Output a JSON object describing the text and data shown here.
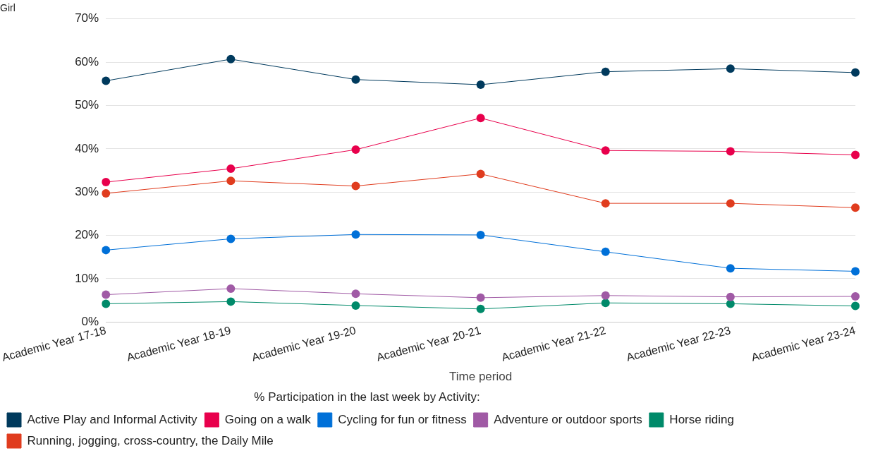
{
  "chart_data": {
    "type": "line",
    "title": "Girl",
    "xlabel": "Time period",
    "legend_title": "% Participation in the last week by Activity:",
    "categories": [
      "Academic Year 17-18",
      "Academic Year 18-19",
      "Academic Year 19-20",
      "Academic Year 20-21",
      "Academic Year 21-22",
      "Academic Year 22-23",
      "Academic Year 23-24"
    ],
    "series": [
      {
        "name": "Active Play and Informal Activity",
        "color": "#003a5d",
        "values": [
          55.7,
          60.7,
          56.0,
          54.8,
          57.8,
          58.5,
          57.6
        ]
      },
      {
        "name": "Going on a walk",
        "color": "#e8004c",
        "values": [
          32.3,
          35.4,
          39.8,
          47.1,
          39.6,
          39.4,
          38.6
        ]
      },
      {
        "name": "Cycling for fun or fitness",
        "color": "#0070d8",
        "values": [
          16.6,
          19.2,
          20.2,
          20.1,
          16.2,
          12.4,
          11.7
        ]
      },
      {
        "name": "Adventure or outdoor sports",
        "color": "#a05aa5",
        "values": [
          6.3,
          7.7,
          6.5,
          5.6,
          6.1,
          5.8,
          5.9
        ]
      },
      {
        "name": "Horse riding",
        "color": "#008a6a",
        "values": [
          4.2,
          4.7,
          3.8,
          3.0,
          4.4,
          4.2,
          3.7
        ]
      },
      {
        "name": "Running, jogging, cross-country, the Daily Mile",
        "color": "#e03c1e",
        "values": [
          29.7,
          32.6,
          31.4,
          34.2,
          27.4,
          27.4,
          26.4
        ]
      }
    ],
    "ylim": [
      0,
      70
    ],
    "yticks": [
      {
        "value": 0,
        "label": "0%"
      },
      {
        "value": 10,
        "label": "10%"
      },
      {
        "value": 20,
        "label": "20%"
      },
      {
        "value": 30,
        "label": "30%"
      },
      {
        "value": 40,
        "label": "40%"
      },
      {
        "value": 50,
        "label": "50%"
      },
      {
        "value": 60,
        "label": "60%"
      },
      {
        "value": 70,
        "label": "70%"
      }
    ],
    "grid": "y",
    "legend": "bottom",
    "marker": "circle",
    "line_style": "solid"
  }
}
